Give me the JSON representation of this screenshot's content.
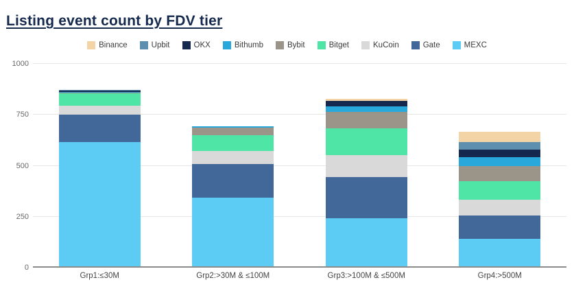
{
  "title": "Listing event count by FDV tier",
  "chart_data": {
    "type": "bar",
    "stacked": true,
    "title": "Listing event count by FDV tier",
    "xlabel": "",
    "ylabel": "",
    "ylim": [
      0,
      1000
    ],
    "yticks": [
      0,
      250,
      500,
      750,
      1000
    ],
    "grid": true,
    "legend_position": "top",
    "categories": [
      "Grp1:≤30M",
      "Grp2:>30M & ≤100M",
      "Grp3:>100M & ≤500M",
      "Grp4:>500M"
    ],
    "series": [
      {
        "name": "Binance",
        "color": "#f2d4a6",
        "values": [
          0,
          0,
          8,
          50
        ]
      },
      {
        "name": "Upbit",
        "color": "#5f8fae",
        "values": [
          3,
          0,
          3,
          36
        ]
      },
      {
        "name": "OKX",
        "color": "#14294d",
        "values": [
          6,
          0,
          26,
          37
        ]
      },
      {
        "name": "Bithumb",
        "color": "#29a8dc",
        "values": [
          4,
          7,
          28,
          45
        ]
      },
      {
        "name": "Bybit",
        "color": "#9a9489",
        "values": [
          2,
          38,
          79,
          73
        ]
      },
      {
        "name": "Bitget",
        "color": "#4fe5a6",
        "values": [
          62,
          76,
          132,
          90
        ]
      },
      {
        "name": "KuCoin",
        "color": "#d9d9d9",
        "values": [
          45,
          64,
          109,
          80
        ]
      },
      {
        "name": "Gate",
        "color": "#42689a",
        "values": [
          135,
          168,
          202,
          115
        ]
      },
      {
        "name": "MEXC",
        "color": "#5dccf5",
        "values": [
          615,
          342,
          241,
          140
        ]
      }
    ],
    "stack_totals": [
      872,
      695,
      828,
      666
    ]
  },
  "colors": {
    "title_text": "#14294d",
    "grid_line": "#e6e6e6",
    "axis_line": "#8c8c8c",
    "y_label_text": "#666666",
    "x_label_text": "#444444",
    "legend_text": "#3a3a3a",
    "background": "#ffffff"
  }
}
